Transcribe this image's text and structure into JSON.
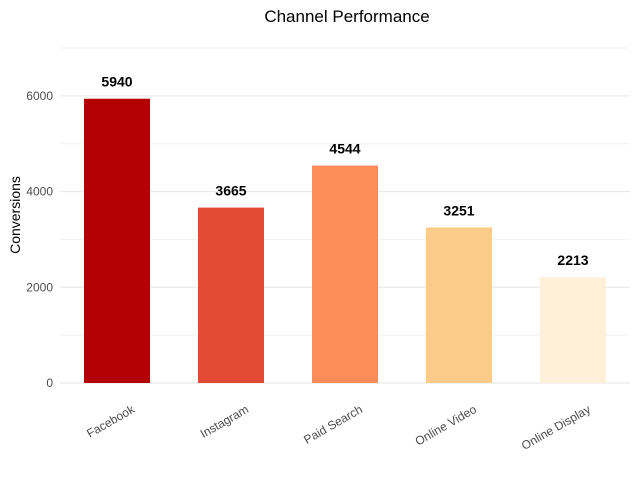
{
  "chart_data": {
    "type": "bar",
    "title": "Channel Performance",
    "xlabel": "",
    "ylabel": "Conversions",
    "categories": [
      "Facebook",
      "Instagram",
      "Paid Search",
      "Online Video",
      "Online Display"
    ],
    "values": [
      5940,
      3665,
      4544,
      3251,
      2213
    ],
    "value_labels": [
      "5940",
      "3665",
      "4544",
      "3251",
      "2213"
    ],
    "colors": [
      "#b30000",
      "#e34a33",
      "#fc8d59",
      "#fdcc8a",
      "#fef0d9"
    ],
    "yticks": [
      0,
      2000,
      4000,
      6000
    ],
    "ytick_labels": [
      "0",
      "2000",
      "4000",
      "6000"
    ],
    "ylim": [
      0,
      7000
    ],
    "grid": true,
    "legend": "none"
  }
}
